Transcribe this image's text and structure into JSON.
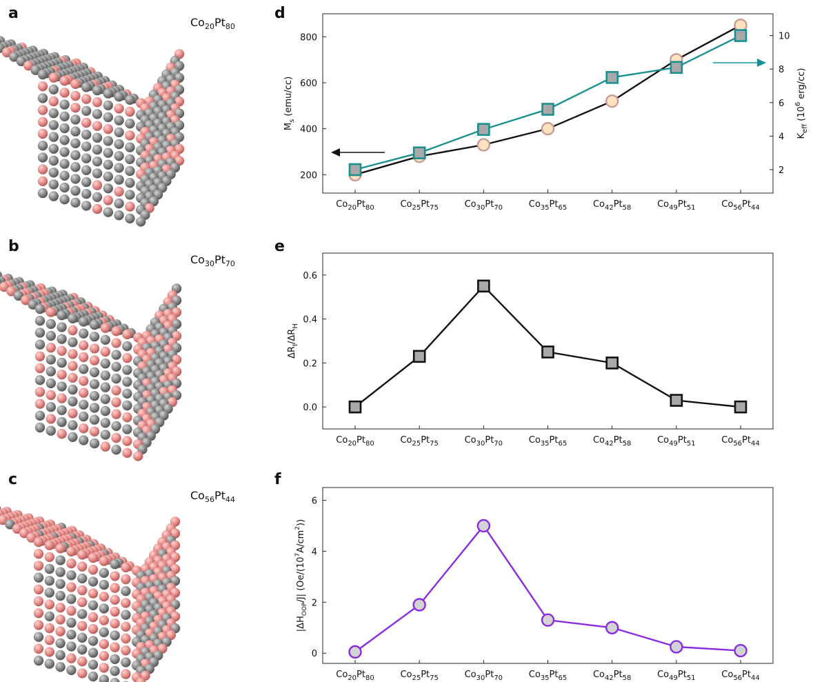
{
  "panels": {
    "a": {
      "letter": "a",
      "label": {
        "co": "Co",
        "co_sub": "20",
        "pt": "Pt",
        "pt_sub": "80"
      }
    },
    "b": {
      "letter": "b",
      "label": {
        "co": "Co",
        "co_sub": "30",
        "pt": "Pt",
        "pt_sub": "70"
      }
    },
    "c": {
      "letter": "c",
      "label": {
        "co": "Co",
        "co_sub": "56",
        "pt": "Pt",
        "pt_sub": "44"
      }
    }
  },
  "colors": {
    "co_atom": "#8c8c8c",
    "pt_atom": "#e8908e",
    "teal": "#1a8f8f",
    "purple": "#8a2be2",
    "marker_peach": "#fde3c0",
    "marker_peach_edge": "#c99a98",
    "marker_gray": "#a9a9a9"
  },
  "chart_data": [
    {
      "panel": "d",
      "type": "line",
      "categories": [
        {
          "co": "Co",
          "co_sub": "20",
          "pt": "Pt",
          "pt_sub": "80"
        },
        {
          "co": "Co",
          "co_sub": "25",
          "pt": "Pt",
          "pt_sub": "75"
        },
        {
          "co": "Co",
          "co_sub": "30",
          "pt": "Pt",
          "pt_sub": "70"
        },
        {
          "co": "Co",
          "co_sub": "35",
          "pt": "Pt",
          "pt_sub": "65"
        },
        {
          "co": "Co",
          "co_sub": "42",
          "pt": "Pt",
          "pt_sub": "58"
        },
        {
          "co": "Co",
          "co_sub": "49",
          "pt": "Pt",
          "pt_sub": "51"
        },
        {
          "co": "Co",
          "co_sub": "56",
          "pt": "Pt",
          "pt_sub": "44"
        }
      ],
      "ylabel": {
        "main": "M",
        "sub": "s",
        "rest": " (emu/cc)"
      },
      "ylabel2": {
        "main": "K",
        "sub": "eff",
        "rest1": "  (10",
        "sup": "6",
        "rest2": " erg/cc)"
      },
      "ylim": [
        120,
        900
      ],
      "yticks": [
        200,
        400,
        600,
        800
      ],
      "ylim2": [
        0.6,
        11.3
      ],
      "yticks2": [
        2,
        4,
        6,
        8,
        10
      ],
      "series": [
        {
          "axis": "left",
          "marker": "circle",
          "values": [
            200,
            280,
            330,
            400,
            520,
            700,
            850
          ]
        },
        {
          "axis": "right",
          "marker": "square",
          "values": [
            2.0,
            3.0,
            4.4,
            5.6,
            7.5,
            8.1,
            10.0
          ]
        }
      ]
    },
    {
      "panel": "e",
      "type": "line",
      "categories": [
        {
          "co": "Co",
          "co_sub": "20",
          "pt": "Pt",
          "pt_sub": "80"
        },
        {
          "co": "Co",
          "co_sub": "25",
          "pt": "Pt",
          "pt_sub": "75"
        },
        {
          "co": "Co",
          "co_sub": "30",
          "pt": "Pt",
          "pt_sub": "70"
        },
        {
          "co": "Co",
          "co_sub": "35",
          "pt": "Pt",
          "pt_sub": "65"
        },
        {
          "co": "Co",
          "co_sub": "42",
          "pt": "Pt",
          "pt_sub": "58"
        },
        {
          "co": "Co",
          "co_sub": "49",
          "pt": "Pt",
          "pt_sub": "51"
        },
        {
          "co": "Co",
          "co_sub": "56",
          "pt": "Pt",
          "pt_sub": "44"
        }
      ],
      "ylabel": {
        "a": "ΔR",
        "a_sub": "I",
        "mid": "/ΔR",
        "b_sub": "H"
      },
      "ylim": [
        -0.1,
        0.7
      ],
      "yticks": [
        "0.0",
        "0.2",
        "0.4",
        "0.6"
      ],
      "series": [
        {
          "marker": "square",
          "values": [
            0.0,
            0.23,
            0.55,
            0.25,
            0.2,
            0.03,
            0.0
          ]
        }
      ]
    },
    {
      "panel": "f",
      "type": "line",
      "categories": [
        {
          "co": "Co",
          "co_sub": "20",
          "pt": "Pt",
          "pt_sub": "80"
        },
        {
          "co": "Co",
          "co_sub": "25",
          "pt": "Pt",
          "pt_sub": "75"
        },
        {
          "co": "Co",
          "co_sub": "30",
          "pt": "Pt",
          "pt_sub": "70"
        },
        {
          "co": "Co",
          "co_sub": "35",
          "pt": "Pt",
          "pt_sub": "65"
        },
        {
          "co": "Co",
          "co_sub": "42",
          "pt": "Pt",
          "pt_sub": "58"
        },
        {
          "co": "Co",
          "co_sub": "49",
          "pt": "Pt",
          "pt_sub": "51"
        },
        {
          "co": "Co",
          "co_sub": "56",
          "pt": "Pt",
          "pt_sub": "44"
        }
      ],
      "ylabel": {
        "a": "|ΔH",
        "sub": "OOP",
        "b": "/J| (Oe/(10",
        "sup1": "7",
        "c": "A/cm",
        "sup2": "2",
        "d": "))"
      },
      "ylim": [
        -0.4,
        6.5
      ],
      "yticks": [
        "0",
        "2",
        "4",
        "6"
      ],
      "series": [
        {
          "marker": "circle",
          "values": [
            0.05,
            1.9,
            5.0,
            1.3,
            1.0,
            0.25,
            0.1
          ]
        }
      ]
    }
  ]
}
